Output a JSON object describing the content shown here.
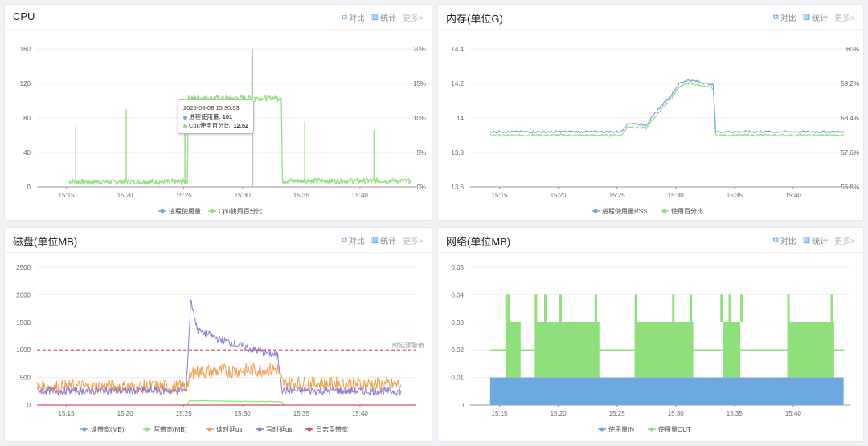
{
  "actions": {
    "compare": "对比",
    "stats": "统计",
    "more": "更多>"
  },
  "colors": {
    "blue": "#6ea8e0",
    "green": "#8fe07a",
    "orange": "#f0a050",
    "purple": "#8a7ad8",
    "red": "#d94b5a"
  },
  "cpu": {
    "title": "CPU",
    "tooltip": {
      "time": "2025-08-08 15:30:53",
      "l1": "进程使用量: ",
      "v1": "101",
      "l2": "Cpu使用百分比: ",
      "v2": "12.52"
    }
  },
  "mem": {
    "title": "内存(单位G)"
  },
  "disk": {
    "title": "磁盘(单位MB)",
    "threshold_label": "时延预警值"
  },
  "net": {
    "title": "网络(单位MB)"
  },
  "chart_data": [
    {
      "type": "line",
      "title": "CPU",
      "x_ticks": [
        "15:15",
        "15:20",
        "15:25",
        "15:30",
        "15:35",
        "15:40"
      ],
      "y_ticks": [
        "0",
        "40",
        "80",
        "120",
        "160"
      ],
      "y2_ticks": [
        "0%",
        "5%",
        "10%",
        "15%",
        "20%"
      ],
      "ylim": [
        0,
        160
      ],
      "y2lim": [
        0,
        20
      ],
      "series": [
        {
          "name": "进程使用量",
          "color": "#6ea8e0"
        },
        {
          "name": "Cpu使用百分比",
          "color": "#8fe07a"
        }
      ],
      "segments": [
        {
          "x": [
            15.2,
            25.3
          ],
          "y": 6
        },
        {
          "x": [
            25.4,
            33.3
          ],
          "y": 103
        },
        {
          "x": [
            33.4,
            44.3
          ],
          "y": 7
        }
      ],
      "spikes": [
        {
          "x": 15.8,
          "y": 71
        },
        {
          "x": 20.1,
          "y": 90
        },
        {
          "x": 25.1,
          "y": 62
        },
        {
          "x": 30.8,
          "y": 150
        },
        {
          "x": 35.3,
          "y": 76
        },
        {
          "x": 41.2,
          "y": 66
        }
      ]
    },
    {
      "type": "line",
      "title": "内存(单位G)",
      "x_ticks": [
        "15:15",
        "15:20",
        "15:25",
        "15:30",
        "15:35",
        "15:40"
      ],
      "y_ticks": [
        "13.6",
        "13.8",
        "14",
        "14.2",
        "14.4"
      ],
      "y2_ticks": [
        "56.8%",
        "57.6%",
        "58.4%",
        "59.2%",
        "60%"
      ],
      "ylim": [
        13.6,
        14.4
      ],
      "series": [
        {
          "name": "进程使用量RSS",
          "color": "#6ea8e0"
        },
        {
          "name": "使用百分比",
          "color": "#8fe07a"
        }
      ],
      "points": [
        [
          14.2,
          13.92
        ],
        [
          25.3,
          13.92
        ],
        [
          26.0,
          13.97
        ],
        [
          27.5,
          13.96
        ],
        [
          28.5,
          14.05
        ],
        [
          29.5,
          14.12
        ],
        [
          30.3,
          14.2
        ],
        [
          31.0,
          14.22
        ],
        [
          32.0,
          14.21
        ],
        [
          33.2,
          14.19
        ],
        [
          33.4,
          13.92
        ],
        [
          44.3,
          13.92
        ]
      ]
    },
    {
      "type": "line",
      "title": "磁盘(单位MB)",
      "x_ticks": [
        "15:15",
        "15:20",
        "15:25",
        "15:30",
        "15:35",
        "15:40"
      ],
      "y_ticks": [
        "0",
        "500",
        "1000",
        "1500",
        "2000",
        "2500"
      ],
      "ylim": [
        0,
        2500
      ],
      "threshold": 1000,
      "series": [
        {
          "name": "读带宽(MB)",
          "color": "#6ea8e0"
        },
        {
          "name": "写带宽(MB)",
          "color": "#8fe07a"
        },
        {
          "name": "读时延us",
          "color": "#f0a050"
        },
        {
          "name": "写时延us",
          "color": "#8a7ad8"
        },
        {
          "name": "日志盘带宽",
          "color": "#d94b5a"
        }
      ],
      "orange": [
        [
          12.5,
          330
        ],
        [
          25.2,
          330
        ],
        [
          25.8,
          600
        ],
        [
          29.0,
          620
        ],
        [
          33.0,
          650
        ],
        [
          33.4,
          400
        ],
        [
          43.5,
          370
        ]
      ],
      "purple": [
        [
          12.5,
          260
        ],
        [
          25.2,
          260
        ],
        [
          25.6,
          1900
        ],
        [
          26.2,
          1350
        ],
        [
          28.0,
          1200
        ],
        [
          31.0,
          1000
        ],
        [
          33.0,
          900
        ],
        [
          33.4,
          260
        ],
        [
          43.5,
          250
        ]
      ],
      "green": [
        [
          25.3,
          0
        ],
        [
          25.5,
          80
        ],
        [
          33.3,
          60
        ],
        [
          33.5,
          0
        ]
      ]
    },
    {
      "type": "area",
      "title": "网络(单位MB)",
      "x_ticks": [
        "15:15",
        "15:20",
        "15:25",
        "15:30",
        "15:35",
        "15:40"
      ],
      "y_ticks": [
        "0",
        "0.01",
        "0.02",
        "0.03",
        "0.04",
        "0.05"
      ],
      "ylim": [
        0,
        0.05
      ],
      "series": [
        {
          "name": "使用量IN",
          "color": "#6ea8e0",
          "value": 0.01
        },
        {
          "name": "使用量OUT",
          "color": "#8fe07a"
        }
      ],
      "out_blocks": [
        [
          15.5,
          16.8
        ],
        [
          18.0,
          23.5
        ],
        [
          26.5,
          31.5
        ],
        [
          34.0,
          35.5
        ],
        [
          39.5,
          43.5
        ]
      ]
    }
  ]
}
